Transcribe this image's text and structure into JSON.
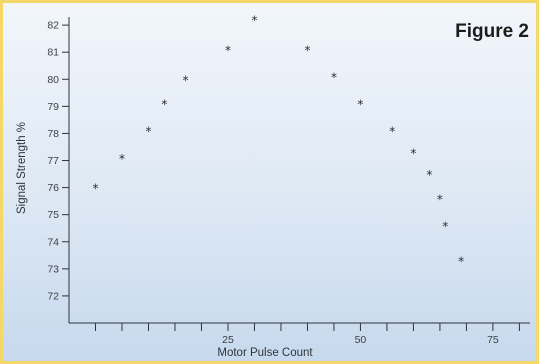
{
  "figure_label": "Figure 2",
  "chart_data": {
    "type": "scatter",
    "marker": "*",
    "xlabel": "Motor Pulse Count",
    "ylabel": "Signal Strength %",
    "xlim": [
      -5,
      82
    ],
    "ylim": [
      71,
      82.3
    ],
    "x_ticks": [
      0,
      5,
      10,
      15,
      20,
      25,
      30,
      35,
      40,
      45,
      50,
      55,
      60,
      65,
      70,
      75,
      80
    ],
    "x_tick_labels": [
      "",
      "",
      "",
      "",
      "",
      "25",
      "",
      "",
      "",
      "",
      "50",
      "",
      "",
      "",
      "",
      "75",
      ""
    ],
    "y_ticks": [
      72,
      73,
      74,
      75,
      76,
      77,
      78,
      79,
      80,
      81,
      82
    ],
    "y_tick_labels": [
      "72",
      "73",
      "74",
      "75",
      "76",
      "77",
      "78",
      "79",
      "80",
      "81",
      "82"
    ],
    "grid": false,
    "series": [
      {
        "points": [
          {
            "x": 0,
            "y": 76.0
          },
          {
            "x": 5,
            "y": 77.1
          },
          {
            "x": 10,
            "y": 78.1
          },
          {
            "x": 13,
            "y": 79.1
          },
          {
            "x": 17,
            "y": 80.0
          },
          {
            "x": 25,
            "y": 81.1
          },
          {
            "x": 30,
            "y": 82.2
          },
          {
            "x": 40,
            "y": 81.1
          },
          {
            "x": 45,
            "y": 80.1
          },
          {
            "x": 50,
            "y": 79.1
          },
          {
            "x": 56,
            "y": 78.1
          },
          {
            "x": 60,
            "y": 77.3
          },
          {
            "x": 63,
            "y": 76.5
          },
          {
            "x": 65,
            "y": 75.6
          },
          {
            "x": 66,
            "y": 74.6
          },
          {
            "x": 69,
            "y": 73.3
          }
        ]
      }
    ]
  }
}
